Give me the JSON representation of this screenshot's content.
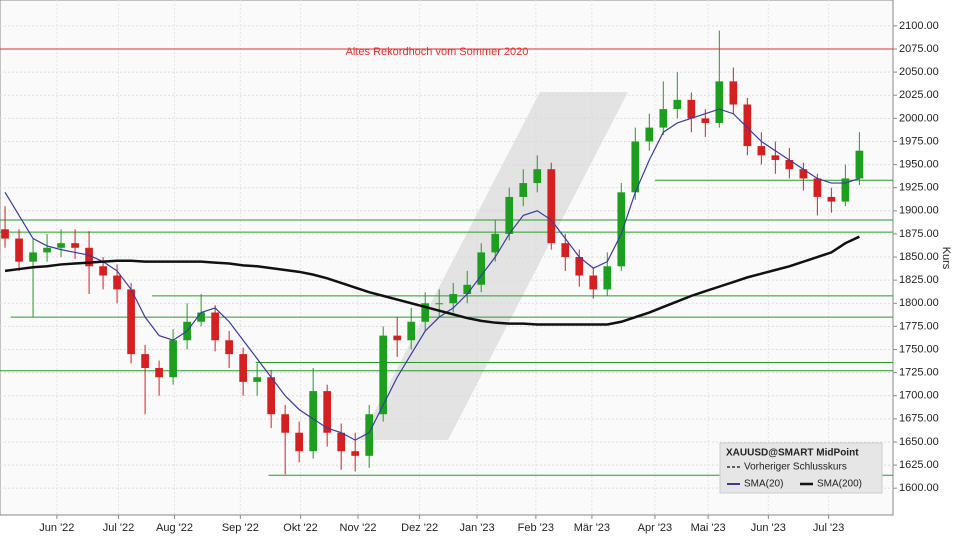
{
  "chart_data": {
    "type": "candlestick",
    "annotation": "Altes Rekordhoch vom Sommer 2020",
    "y_label": "Kurs",
    "grid": true,
    "up_color": "#1e9e1e",
    "down_color": "#d42020",
    "x": [
      0,
      1,
      2,
      3,
      4,
      5,
      6,
      7,
      8,
      9,
      10,
      11,
      12,
      13,
      14,
      15,
      16,
      17,
      18,
      19,
      20,
      21,
      22,
      23,
      24,
      25,
      26,
      27,
      28,
      29,
      30,
      31,
      32,
      33,
      34,
      35,
      36,
      37,
      38,
      39,
      40,
      41,
      42,
      43,
      44,
      45,
      46,
      47,
      48,
      49,
      50,
      51,
      52,
      53,
      54,
      55,
      56,
      57,
      58,
      59,
      60,
      61
    ],
    "open": [
      1880,
      1870,
      1845,
      1855,
      1860,
      1865,
      1860,
      1840,
      1830,
      1815,
      1745,
      1730,
      1720,
      1760,
      1780,
      1790,
      1760,
      1745,
      1715,
      1720,
      1680,
      1660,
      1640,
      1705,
      1660,
      1640,
      1635,
      1680,
      1765,
      1760,
      1780,
      1800,
      1800,
      1810,
      1820,
      1855,
      1875,
      1915,
      1930,
      1945,
      1865,
      1850,
      1830,
      1815,
      1840,
      1920,
      1975,
      1990,
      2010,
      2020,
      2000,
      1995,
      2040,
      2015,
      1970,
      1960,
      1955,
      1945,
      1935,
      1915,
      1910,
      1935
    ],
    "high": [
      1905,
      1880,
      1870,
      1875,
      1880,
      1880,
      1878,
      1850,
      1842,
      1822,
      1755,
      1738,
      1772,
      1800,
      1810,
      1798,
      1770,
      1752,
      1735,
      1728,
      1690,
      1672,
      1730,
      1712,
      1670,
      1660,
      1690,
      1775,
      1785,
      1795,
      1812,
      1815,
      1822,
      1835,
      1865,
      1890,
      1925,
      1945,
      1960,
      1952,
      1875,
      1858,
      1838,
      1855,
      1930,
      1990,
      2005,
      2040,
      2050,
      2028,
      2010,
      2095,
      2055,
      2022,
      1985,
      1975,
      1968,
      1952,
      1940,
      1925,
      1950,
      1985
    ],
    "low": [
      1860,
      1835,
      1785,
      1845,
      1850,
      1848,
      1810,
      1815,
      1800,
      1735,
      1680,
      1700,
      1712,
      1750,
      1775,
      1748,
      1730,
      1700,
      1700,
      1665,
      1615,
      1628,
      1632,
      1645,
      1620,
      1618,
      1622,
      1672,
      1742,
      1750,
      1770,
      1785,
      1790,
      1800,
      1812,
      1845,
      1868,
      1905,
      1920,
      1858,
      1835,
      1818,
      1805,
      1808,
      1835,
      1912,
      1965,
      1982,
      2000,
      1985,
      1980,
      1990,
      2005,
      1960,
      1950,
      1940,
      1935,
      1922,
      1895,
      1898,
      1905,
      1928
    ],
    "close": [
      1870,
      1845,
      1855,
      1860,
      1865,
      1860,
      1840,
      1830,
      1815,
      1745,
      1730,
      1720,
      1760,
      1780,
      1790,
      1760,
      1745,
      1715,
      1720,
      1680,
      1660,
      1640,
      1705,
      1660,
      1640,
      1635,
      1680,
      1765,
      1760,
      1780,
      1800,
      1800,
      1810,
      1820,
      1855,
      1875,
      1915,
      1930,
      1945,
      1865,
      1850,
      1830,
      1815,
      1840,
      1920,
      1975,
      1990,
      2010,
      2020,
      2000,
      1995,
      2040,
      2015,
      1970,
      1960,
      1955,
      1945,
      1935,
      1915,
      1910,
      1935,
      1965
    ],
    "series": [
      {
        "name": "SMA(20)",
        "color": "#3b3b9e",
        "values": [
          1920,
          1895,
          1870,
          1862,
          1858,
          1855,
          1852,
          1845,
          1835,
          1815,
          1785,
          1765,
          1760,
          1770,
          1790,
          1795,
          1780,
          1760,
          1740,
          1720,
          1700,
          1685,
          1675,
          1665,
          1660,
          1652,
          1660,
          1690,
          1720,
          1745,
          1770,
          1785,
          1795,
          1810,
          1830,
          1850,
          1875,
          1895,
          1900,
          1890,
          1870,
          1850,
          1838,
          1845,
          1875,
          1920,
          1955,
          1985,
          1995,
          2000,
          2005,
          2010,
          2005,
          1990,
          1975,
          1965,
          1955,
          1945,
          1935,
          1930,
          1930,
          1935
        ]
      },
      {
        "name": "SMA(200)",
        "color": "#111111",
        "values": [
          1835,
          1837,
          1839,
          1840,
          1842,
          1843,
          1844,
          1845,
          1846,
          1846,
          1845,
          1845,
          1845,
          1845,
          1845,
          1844,
          1843,
          1841,
          1840,
          1838,
          1836,
          1834,
          1831,
          1827,
          1822,
          1817,
          1812,
          1808,
          1804,
          1800,
          1796,
          1792,
          1788,
          1784,
          1781,
          1779,
          1778,
          1778,
          1777,
          1777,
          1777,
          1777,
          1777,
          1777,
          1780,
          1785,
          1790,
          1796,
          1802,
          1808,
          1813,
          1818,
          1823,
          1828,
          1832,
          1836,
          1840,
          1845,
          1850,
          1855,
          1865,
          1872
        ]
      }
    ],
    "hlines": [
      {
        "value": 2075,
        "color": "#e03030",
        "x": [
          -0.36,
          63.4
        ]
      },
      {
        "value": 1933,
        "color": "#2a9a2a",
        "x": [
          46.4,
          63.4
        ]
      },
      {
        "value": 1890,
        "color": "#2a9a2a",
        "x": [
          -0.36,
          63.4
        ]
      },
      {
        "value": 1877,
        "color": "#2a9a2a",
        "x": [
          -0.36,
          63.4
        ]
      },
      {
        "value": 1808,
        "color": "#2a9a2a",
        "x": [
          10.5,
          63.4
        ]
      },
      {
        "value": 1785,
        "color": "#2a9a2a",
        "x": [
          0.4,
          63.4
        ]
      },
      {
        "value": 1736,
        "color": "#2a9a2a",
        "x": [
          17.9,
          63.4
        ]
      },
      {
        "value": 1727,
        "color": "#2a9a2a",
        "x": [
          -0.36,
          63.4
        ]
      },
      {
        "value": 1614,
        "color": "#2a9a2a",
        "x": [
          18.8,
          63.4
        ]
      }
    ],
    "legend": {
      "title": "XAUUSD@SMART MidPoint",
      "items": [
        "Vorheriger Schlusskurs"
      ]
    },
    "xlim": [
      -0.36,
      63.4
    ],
    "xticks": [
      {
        "value": 3.7,
        "label": "Jun '22"
      },
      {
        "value": 8.1,
        "label": "Jul '22"
      },
      {
        "value": 12.1,
        "label": "Aug '22"
      },
      {
        "value": 16.8,
        "label": "Sep '22"
      },
      {
        "value": 21.1,
        "label": "Okt '22"
      },
      {
        "value": 25.2,
        "label": "Nov '22"
      },
      {
        "value": 29.6,
        "label": "Dez '22"
      },
      {
        "value": 33.7,
        "label": "Jan '23"
      },
      {
        "value": 37.9,
        "label": "Feb '23"
      },
      {
        "value": 41.9,
        "label": "Mär '23"
      },
      {
        "value": 46.4,
        "label": "Apr '23"
      },
      {
        "value": 50.2,
        "label": "Mai '23"
      },
      {
        "value": 54.5,
        "label": "Jun '23"
      },
      {
        "value": 58.8,
        "label": "Jul '23"
      }
    ],
    "ylim": [
      1571,
      2128
    ],
    "yticks": [
      {
        "value": 1600,
        "label": "1600.00"
      },
      {
        "value": 1625,
        "label": "1625.00"
      },
      {
        "value": 1650,
        "label": "1650.00"
      },
      {
        "value": 1675,
        "label": "1675.00"
      },
      {
        "value": 1700,
        "label": "1700.00"
      },
      {
        "value": 1725,
        "label": "1725.00"
      },
      {
        "value": 1750,
        "label": "1750.00"
      },
      {
        "value": 1775,
        "label": "1775.00"
      },
      {
        "value": 1800,
        "label": "1800.00"
      },
      {
        "value": 1825,
        "label": "1825.00"
      },
      {
        "value": 1850,
        "label": "1850.00"
      },
      {
        "value": 1875,
        "label": "1875.00"
      },
      {
        "value": 1900,
        "label": "1900.00"
      },
      {
        "value": 1925,
        "label": "1925.00"
      },
      {
        "value": 1950,
        "label": "1950.00"
      },
      {
        "value": 1975,
        "label": "1975.00"
      },
      {
        "value": 2000,
        "label": "2000.00"
      },
      {
        "value": 2025,
        "label": "2025.00"
      },
      {
        "value": 2050,
        "label": "2050.00"
      },
      {
        "value": 2075,
        "label": "2075.00"
      },
      {
        "value": 2100,
        "label": "2100.00"
      }
    ]
  }
}
